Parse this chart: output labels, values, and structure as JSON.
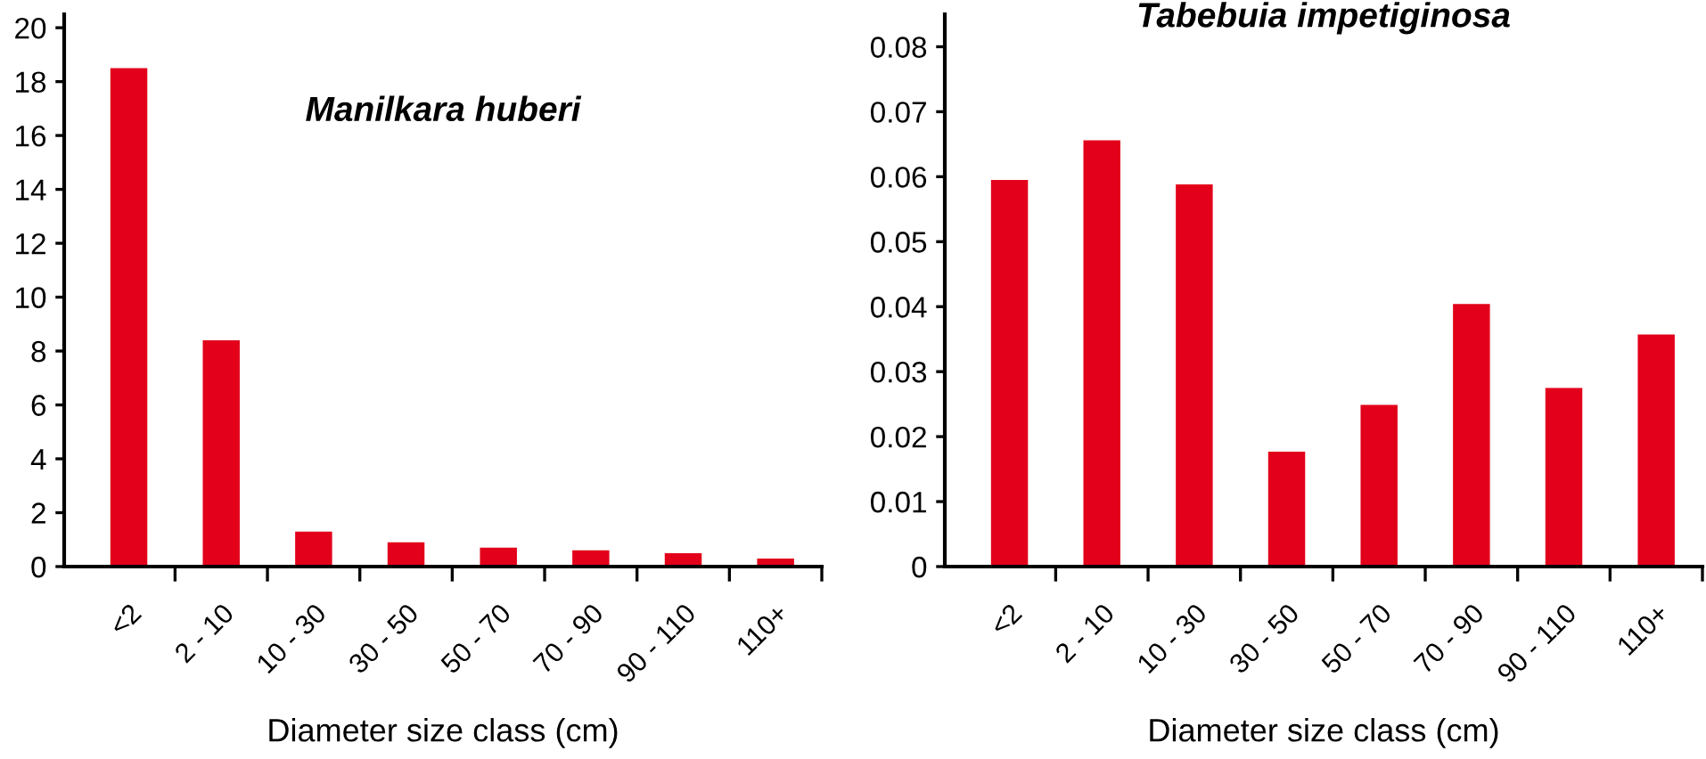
{
  "chart_data": [
    {
      "type": "bar",
      "title": "Manilkara huberi",
      "xlabel": "Diameter size class (cm)",
      "categories": [
        "<2",
        "2 - 10",
        "10 - 30",
        "30 - 50",
        "50 - 70",
        "70 - 90",
        "90 - 110",
        "110+"
      ],
      "values": [
        18.5,
        8.4,
        1.3,
        0.9,
        0.7,
        0.6,
        0.5,
        0.3
      ],
      "color": "#e2001a",
      "ylim": [
        0,
        20.5
      ],
      "yticks": [
        0,
        2,
        4,
        6,
        8,
        10,
        12,
        14,
        16,
        18,
        20
      ],
      "grid": false,
      "legend": false
    },
    {
      "type": "bar",
      "title": "Tabebuia impetiginosa",
      "xlabel": "Diameter size class (cm)",
      "categories": [
        "<2",
        "2 - 10",
        "10 - 30",
        "30 - 50",
        "50 - 70",
        "70 - 90",
        "90 - 110",
        "110+"
      ],
      "values": [
        0.0595,
        0.0656,
        0.0588,
        0.0177,
        0.0249,
        0.0404,
        0.0275,
        0.0357
      ],
      "color": "#e2001a",
      "ylim": [
        0,
        0.085
      ],
      "yticks": [
        0,
        0.01,
        0.02,
        0.03,
        0.04,
        0.05,
        0.06,
        0.07,
        0.08
      ],
      "grid": false,
      "legend": false
    }
  ]
}
